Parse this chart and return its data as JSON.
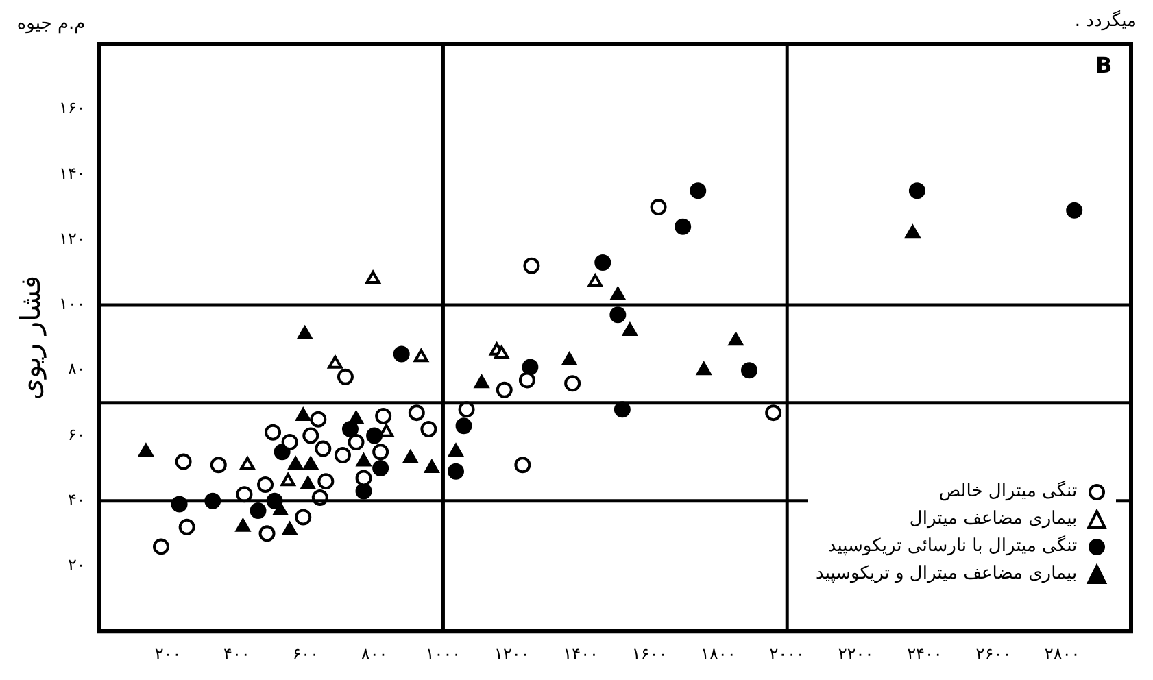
{
  "chart_data": {
    "type": "scatter",
    "ylabel": "فشار ریوی",
    "legend": "bottom right",
    "grid": false,
    "annotations": [
      "م.م جیوه",
      "B",
      "میگردد ."
    ],
    "xlim": [
      0,
      3000
    ],
    "ylim": [
      0,
      180
    ],
    "xticks": [
      {
        "value": 200,
        "label": "۲۰۰"
      },
      {
        "value": 400,
        "label": "۴۰۰"
      },
      {
        "value": 600,
        "label": "۶۰۰"
      },
      {
        "value": 800,
        "label": "۸۰۰"
      },
      {
        "value": 1000,
        "label": "۱۰۰۰"
      },
      {
        "value": 1200,
        "label": "۱۲۰۰"
      },
      {
        "value": 1400,
        "label": "۱۴۰۰"
      },
      {
        "value": 1600,
        "label": "۱۶۰۰"
      },
      {
        "value": 1800,
        "label": "۱۸۰۰"
      },
      {
        "value": 2000,
        "label": "۲۰۰۰"
      },
      {
        "value": 2200,
        "label": "۲۲۰۰"
      },
      {
        "value": 2400,
        "label": "۲۴۰۰"
      },
      {
        "value": 2600,
        "label": "۲۶۰۰"
      },
      {
        "value": 2800,
        "label": "۲۸۰۰"
      }
    ],
    "yticks": [
      {
        "value": 20,
        "label": "۲۰"
      },
      {
        "value": 40,
        "label": "۴۰"
      },
      {
        "value": 60,
        "label": "۶۰"
      },
      {
        "value": 80,
        "label": "۸۰"
      },
      {
        "value": 100,
        "label": "۱۰۰"
      },
      {
        "value": 120,
        "label": "۱۲۰"
      },
      {
        "value": 140,
        "label": "۱۴۰"
      },
      {
        "value": 160,
        "label": "۱۶۰"
      }
    ],
    "ref_lines": [
      {
        "axis": "y",
        "value": 40,
        "color": "#000000"
      },
      {
        "axis": "y",
        "value": 70,
        "color": "#000000"
      },
      {
        "axis": "y",
        "value": 100,
        "color": "#000000"
      },
      {
        "axis": "x",
        "value": 1000,
        "color": "#000000"
      },
      {
        "axis": "x",
        "value": 2000,
        "color": "#000000"
      }
    ],
    "series": [
      {
        "name": "تنگی میترال خالص",
        "color": "#ffffff",
        "marker": "circle",
        "x": [
          180,
          255,
          245,
          347,
          483,
          422,
          488,
          593,
          505,
          554,
          615,
          637,
          651,
          659,
          642,
          708,
          747,
          769,
          818,
          826,
          923,
          958,
          1068,
          1231,
          716,
          1178,
          1960,
          1376,
          1257,
          1626,
          1244
        ],
        "values": [
          26,
          32,
          52,
          51,
          45,
          42,
          30,
          35,
          61,
          58,
          60,
          65,
          56,
          46,
          41,
          54,
          58,
          47,
          55,
          66,
          67,
          62,
          68,
          51,
          78,
          74,
          67,
          76,
          112,
          130,
          77
        ]
      },
      {
        "name": "بیماری مضاعف میترال",
        "color": "#ffffff",
        "marker": "triangle",
        "x": [
          796,
          686,
          936,
          549,
          431,
          835,
          1156,
          1442,
          1170
        ],
        "values": [
          108,
          82,
          84,
          46,
          51,
          61,
          86,
          107,
          85
        ]
      },
      {
        "name": "تنگی میترال با نارسائی تریکوسپید",
        "color": "#000000",
        "marker": "circle",
        "x": [
          233,
          330,
          462,
          510,
          532,
          730,
          800,
          818,
          769,
          879,
          1060,
          1037,
          1253,
          1890,
          1521,
          1464,
          1508,
          1697,
          1741,
          2378,
          2835
        ],
        "values": [
          39,
          40,
          37,
          40,
          55,
          62,
          60,
          50,
          43,
          85,
          63,
          49,
          81,
          80,
          68,
          113,
          97,
          124,
          135,
          135,
          129
        ]
      },
      {
        "name": "بیماری مضاعف میترال و تریکوسپید",
        "color": "#000000",
        "marker": "triangle",
        "x": [
          136,
          593,
          747,
          571,
          615,
          769,
          905,
          967,
          1037,
          607,
          527,
          418,
          554,
          598,
          1112,
          1508,
          1543,
          1851,
          1758,
          1367,
          2365
        ],
        "values": [
          55,
          66,
          65,
          51,
          51,
          52,
          53,
          50,
          55,
          45,
          37,
          32,
          31,
          91,
          76,
          103,
          92,
          89,
          80,
          83,
          122
        ]
      }
    ]
  }
}
